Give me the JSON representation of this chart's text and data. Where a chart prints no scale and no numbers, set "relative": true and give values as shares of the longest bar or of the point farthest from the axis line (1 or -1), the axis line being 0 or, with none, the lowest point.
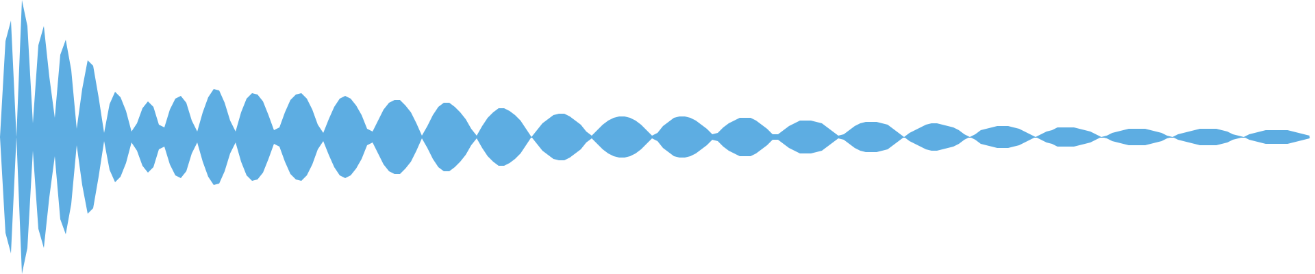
{
  "chart_data": {
    "type": "area",
    "relative": true,
    "categories": [
      null,
      null,
      null,
      null,
      null,
      null,
      null,
      null,
      null,
      null,
      null,
      null,
      null,
      null,
      null,
      null,
      null,
      null,
      null,
      null,
      null,
      null,
      null,
      null,
      null,
      null,
      null,
      null,
      null,
      null,
      null,
      null,
      null,
      null,
      null,
      null,
      null,
      null,
      null,
      null,
      null,
      null,
      null,
      null,
      null,
      null,
      null,
      null,
      null,
      null,
      null,
      null,
      null,
      null,
      null,
      null,
      null,
      null,
      null,
      null,
      null,
      null,
      null,
      null,
      null,
      null,
      null,
      null,
      null,
      null,
      null,
      null,
      null,
      null,
      null,
      null,
      null,
      null,
      null,
      null,
      null,
      null,
      null,
      null,
      null,
      null,
      null,
      null,
      null,
      null,
      null,
      null,
      null,
      null,
      null,
      null,
      null,
      null,
      null,
      null,
      null,
      null,
      null,
      null,
      null,
      null,
      null,
      null,
      null,
      null,
      null,
      null,
      null,
      null,
      null,
      null,
      null,
      null,
      null,
      null,
      null,
      null,
      null,
      null,
      null,
      null,
      null,
      null,
      null,
      null,
      null,
      null,
      null,
      null,
      null,
      null,
      null,
      null,
      null,
      null,
      null,
      null,
      null,
      null,
      null,
      null,
      null,
      null,
      null,
      null,
      null,
      null,
      null,
      null,
      null,
      null,
      null,
      null,
      null,
      null,
      null,
      null,
      null,
      null,
      null,
      null,
      null,
      null,
      null,
      null,
      null,
      null,
      null,
      null,
      null,
      null,
      null,
      null,
      null,
      null,
      null,
      null,
      null,
      null,
      null,
      null,
      null,
      null,
      null,
      null,
      null,
      null,
      null,
      null,
      null,
      null,
      null,
      null,
      null,
      null,
      null,
      null,
      null,
      null,
      null,
      null,
      null,
      null,
      null,
      null,
      null,
      null,
      null,
      null,
      null,
      null,
      null,
      null,
      null,
      null,
      null,
      null,
      null,
      null,
      null,
      null,
      null,
      null,
      null,
      null,
      null,
      null,
      null,
      null,
      null,
      null,
      null,
      null,
      null,
      null
    ],
    "series": [
      {
        "color": "#5dade2",
        "values": [
          0,
          0.7,
          0.85,
          0,
          1,
          0.81,
          0.1,
          0.67,
          0.81,
          0.44,
          0.14,
          0.6,
          0.71,
          0.49,
          0.06,
          0.35,
          0.56,
          0.52,
          0.29,
          0.03,
          0.24,
          0.33,
          0.29,
          0.19,
          0.04,
          0.1,
          0.21,
          0.26,
          0.22,
          0.09,
          0.07,
          0.2,
          0.28,
          0.3,
          0.25,
          0.12,
          0.04,
          0.18,
          0.29,
          0.35,
          0.34,
          0.25,
          0.12,
          0.04,
          0.18,
          0.28,
          0.32,
          0.31,
          0.26,
          0.16,
          0.05,
          0.07,
          0.18,
          0.27,
          0.31,
          0.32,
          0.28,
          0.2,
          0.09,
          0.03,
          0.13,
          0.22,
          0.28,
          0.3,
          0.28,
          0.23,
          0.16,
          0.06,
          0.04,
          0.12,
          0.2,
          0.25,
          0.27,
          0.27,
          0.23,
          0.18,
          0.1,
          0.01,
          0.08,
          0.16,
          0.22,
          0.25,
          0.25,
          0.22,
          0.18,
          0.13,
          0.06,
          0.01,
          0.08,
          0.14,
          0.18,
          0.21,
          0.21,
          0.19,
          0.16,
          0.12,
          0.06,
          0,
          0.05,
          0.1,
          0.13,
          0.16,
          0.17,
          0.17,
          0.15,
          0.12,
          0.09,
          0.04,
          0.01,
          0.05,
          0.09,
          0.12,
          0.14,
          0.15,
          0.15,
          0.14,
          0.12,
          0.09,
          0.05,
          0.01,
          0.03,
          0.08,
          0.11,
          0.14,
          0.15,
          0.15,
          0.14,
          0.12,
          0.09,
          0.06,
          0.02,
          0.03,
          0.07,
          0.1,
          0.12,
          0.14,
          0.14,
          0.14,
          0.12,
          0.09,
          0.06,
          0.02,
          0.02,
          0.05,
          0.08,
          0.1,
          0.12,
          0.12,
          0.12,
          0.11,
          0.1,
          0.07,
          0.04,
          0.01,
          0.02,
          0.05,
          0.08,
          0.1,
          0.11,
          0.11,
          0.11,
          0.1,
          0.09,
          0.06,
          0.03,
          0,
          0.03,
          0.05,
          0.07,
          0.09,
          0.1,
          0.1,
          0.09,
          0.08,
          0.07,
          0.05,
          0.02,
          0,
          0.02,
          0.05,
          0.06,
          0.07,
          0.08,
          0.08,
          0.08,
          0.07,
          0.06,
          0.04,
          0.02,
          0,
          0.02,
          0.04,
          0.05,
          0.07,
          0.07,
          0.07,
          0.07,
          0.06,
          0.05,
          0.04,
          0.02,
          0,
          0.01,
          0.03,
          0.04,
          0.05,
          0.06,
          0.06,
          0.06,
          0.06,
          0.05,
          0.04,
          0.03,
          0.01,
          0,
          0.02,
          0.03,
          0.04,
          0.05,
          0.06,
          0.06,
          0.06,
          0.06,
          0.05,
          0.04,
          0.02,
          0.01,
          0,
          0.02,
          0.03,
          0.04,
          0.05,
          0.05,
          0.05,
          0.05,
          0.05,
          0.04,
          0.03,
          0.02,
          0.01
        ]
      },
      {
        "color": "#5eade2",
        "values": [
          0,
          -0.7,
          -0.85,
          0,
          -1,
          -0.81,
          -0.1,
          -0.67,
          -0.81,
          -0.44,
          -0.14,
          -0.6,
          -0.71,
          -0.49,
          -0.06,
          -0.35,
          -0.56,
          -0.52,
          -0.29,
          -0.03,
          -0.24,
          -0.33,
          -0.29,
          -0.19,
          -0.04,
          -0.1,
          -0.21,
          -0.26,
          -0.22,
          -0.09,
          -0.07,
          -0.2,
          -0.28,
          -0.3,
          -0.25,
          -0.12,
          -0.04,
          -0.18,
          -0.29,
          -0.35,
          -0.34,
          -0.25,
          -0.12,
          -0.04,
          -0.18,
          -0.28,
          -0.32,
          -0.31,
          -0.26,
          -0.16,
          -0.05,
          -0.07,
          -0.18,
          -0.27,
          -0.31,
          -0.32,
          -0.28,
          -0.2,
          -0.09,
          -0.03,
          -0.13,
          -0.22,
          -0.28,
          -0.3,
          -0.28,
          -0.23,
          -0.16,
          -0.06,
          -0.04,
          -0.12,
          -0.2,
          -0.25,
          -0.27,
          -0.27,
          -0.23,
          -0.18,
          -0.1,
          -0.01,
          -0.08,
          -0.16,
          -0.22,
          -0.25,
          -0.25,
          -0.22,
          -0.18,
          -0.13,
          -0.06,
          -0.01,
          -0.08,
          -0.14,
          -0.18,
          -0.21,
          -0.21,
          -0.19,
          -0.16,
          -0.12,
          -0.06,
          0,
          -0.05,
          -0.1,
          -0.13,
          -0.16,
          -0.17,
          -0.17,
          -0.15,
          -0.12,
          -0.09,
          -0.04,
          -0.01,
          -0.05,
          -0.09,
          -0.12,
          -0.14,
          -0.15,
          -0.15,
          -0.14,
          -0.12,
          -0.09,
          -0.05,
          -0.01,
          -0.03,
          -0.08,
          -0.11,
          -0.14,
          -0.15,
          -0.15,
          -0.14,
          -0.12,
          -0.09,
          -0.06,
          -0.02,
          -0.03,
          -0.07,
          -0.1,
          -0.12,
          -0.14,
          -0.14,
          -0.14,
          -0.12,
          -0.09,
          -0.06,
          -0.02,
          -0.02,
          -0.05,
          -0.08,
          -0.1,
          -0.12,
          -0.12,
          -0.12,
          -0.11,
          -0.1,
          -0.07,
          -0.04,
          -0.01,
          -0.02,
          -0.05,
          -0.08,
          -0.1,
          -0.11,
          -0.11,
          -0.11,
          -0.1,
          -0.09,
          -0.06,
          -0.03,
          0,
          -0.03,
          -0.05,
          -0.07,
          -0.09,
          -0.1,
          -0.1,
          -0.09,
          -0.08,
          -0.07,
          -0.05,
          -0.02,
          0,
          -0.02,
          -0.05,
          -0.06,
          -0.07,
          -0.08,
          -0.08,
          -0.08,
          -0.07,
          -0.06,
          -0.04,
          -0.02,
          0,
          -0.02,
          -0.04,
          -0.05,
          -0.07,
          -0.07,
          -0.07,
          -0.07,
          -0.06,
          -0.05,
          -0.04,
          -0.02,
          0,
          -0.01,
          -0.03,
          -0.04,
          -0.05,
          -0.06,
          -0.06,
          -0.06,
          -0.06,
          -0.05,
          -0.04,
          -0.03,
          -0.01,
          0,
          -0.02,
          -0.03,
          -0.04,
          -0.05,
          -0.06,
          -0.06,
          -0.06,
          -0.06,
          -0.05,
          -0.04,
          -0.02,
          -0.01,
          0,
          -0.02,
          -0.03,
          -0.04,
          -0.05,
          -0.05,
          -0.05,
          -0.05,
          -0.05,
          -0.04,
          -0.03,
          -0.02,
          -0.01
        ]
      }
    ]
  }
}
